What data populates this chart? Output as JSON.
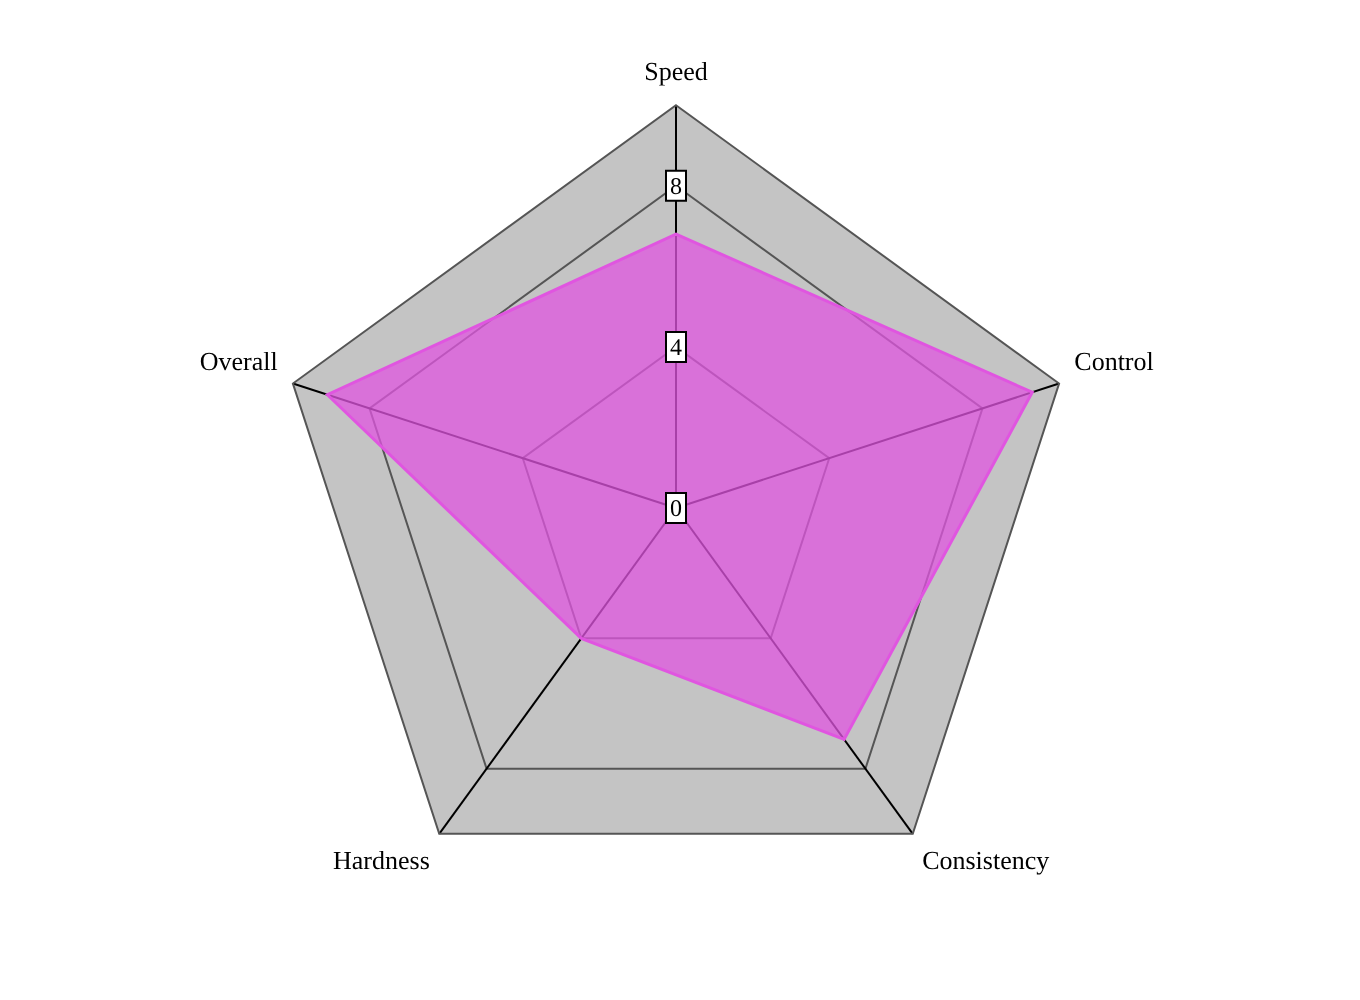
{
  "chart_data": {
    "type": "radar",
    "categories": [
      "Speed",
      "Control",
      "Consistency",
      "Hardness",
      "Overall"
    ],
    "series": [
      {
        "color": "#e055e0",
        "values": [
          6.8,
          9.3,
          7.1,
          4.0,
          9.1
        ]
      }
    ],
    "ylim": [
      0,
      10
    ],
    "yticks": [
      0,
      4,
      8
    ],
    "grid": true,
    "legend": false,
    "marker": "none"
  }
}
